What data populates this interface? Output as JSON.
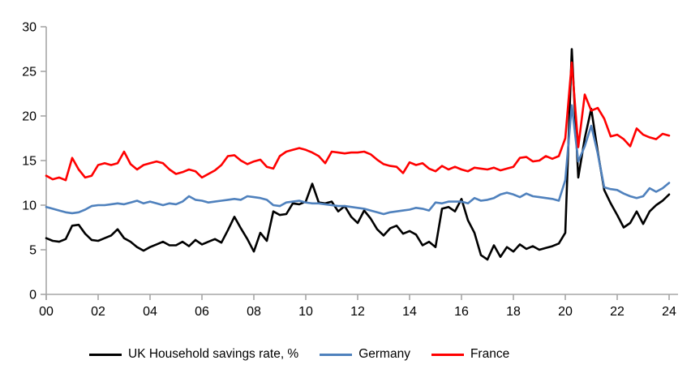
{
  "page": {
    "background": "#FFFFFF"
  },
  "chart_data": {
    "type": "line",
    "title": "",
    "frequency": "quarterly",
    "grid": false,
    "legend_position": "bottom",
    "axis_color": "#A6A6A6",
    "label_color": "#000000",
    "x_axis": {
      "start_year": 2000,
      "end_year": 2024,
      "tick_interval_years": 2,
      "tick_labels": [
        "00",
        "02",
        "04",
        "06",
        "08",
        "10",
        "12",
        "14",
        "16",
        "18",
        "20",
        "22",
        "24"
      ]
    },
    "y_axis": {
      "min": 0,
      "max": 30,
      "tick_step": 5,
      "tick_labels": [
        "0",
        "5",
        "10",
        "15",
        "20",
        "25",
        "30"
      ]
    },
    "series": [
      {
        "name": "UK Household savings rate, %",
        "color": "#000000",
        "values": [
          6.3,
          6.0,
          5.9,
          6.2,
          7.7,
          7.8,
          6.8,
          6.1,
          6.0,
          6.3,
          6.6,
          7.3,
          6.3,
          5.9,
          5.3,
          4.9,
          5.3,
          5.6,
          5.9,
          5.5,
          5.5,
          5.9,
          5.4,
          6.1,
          5.6,
          5.9,
          6.2,
          5.8,
          7.2,
          8.7,
          7.4,
          6.2,
          4.8,
          6.9,
          6.0,
          9.3,
          8.9,
          9.0,
          10.2,
          10.1,
          10.4,
          12.4,
          10.3,
          10.2,
          10.4,
          9.3,
          9.9,
          8.7,
          8.0,
          9.4,
          8.5,
          7.3,
          6.6,
          7.4,
          7.7,
          6.8,
          7.1,
          6.7,
          5.5,
          5.9,
          5.3,
          9.6,
          9.8,
          9.3,
          10.7,
          8.3,
          6.9,
          4.4,
          3.9,
          5.5,
          4.2,
          5.3,
          4.8,
          5.6,
          5.1,
          5.4,
          5.0,
          5.2,
          5.4,
          5.7,
          6.9,
          27.5,
          13.1,
          17.5,
          20.8,
          16.0,
          11.7,
          10.2,
          8.9,
          7.5,
          8.0,
          9.3,
          7.9,
          9.3,
          10.0,
          10.5,
          11.2
        ]
      },
      {
        "name": "Germany",
        "color": "#4F81BD",
        "values": [
          9.8,
          9.6,
          9.4,
          9.2,
          9.1,
          9.2,
          9.5,
          9.9,
          10.0,
          10.0,
          10.1,
          10.2,
          10.1,
          10.3,
          10.5,
          10.2,
          10.4,
          10.2,
          10.0,
          10.2,
          10.1,
          10.4,
          11.0,
          10.6,
          10.5,
          10.3,
          10.4,
          10.5,
          10.6,
          10.7,
          10.6,
          11.0,
          10.9,
          10.8,
          10.6,
          10.0,
          9.9,
          10.3,
          10.4,
          10.5,
          10.3,
          10.2,
          10.2,
          10.1,
          10.0,
          9.9,
          9.9,
          9.8,
          9.7,
          9.6,
          9.4,
          9.2,
          9.0,
          9.2,
          9.3,
          9.4,
          9.5,
          9.7,
          9.6,
          9.4,
          10.3,
          10.2,
          10.4,
          10.4,
          10.4,
          10.2,
          10.8,
          10.5,
          10.6,
          10.8,
          11.2,
          11.4,
          11.2,
          10.9,
          11.3,
          11.0,
          10.9,
          10.8,
          10.7,
          10.5,
          12.8,
          21.2,
          14.9,
          16.6,
          18.9,
          15.8,
          12.0,
          11.8,
          11.7,
          11.3,
          11.0,
          10.8,
          11.0,
          11.9,
          11.5,
          11.9,
          12.5
        ]
      },
      {
        "name": "France",
        "color": "#FF0000",
        "values": [
          13.3,
          12.9,
          13.1,
          12.8,
          15.3,
          14.0,
          13.1,
          13.3,
          14.5,
          14.7,
          14.5,
          14.7,
          16.0,
          14.6,
          14.0,
          14.5,
          14.7,
          14.9,
          14.7,
          14.0,
          13.5,
          13.7,
          14.0,
          13.8,
          13.1,
          13.5,
          13.9,
          14.5,
          15.5,
          15.6,
          15.0,
          14.6,
          14.9,
          15.1,
          14.3,
          14.1,
          15.5,
          16.0,
          16.2,
          16.4,
          16.2,
          15.9,
          15.5,
          14.7,
          16.0,
          15.9,
          15.8,
          15.9,
          15.9,
          16.0,
          15.7,
          15.1,
          14.6,
          14.4,
          14.3,
          13.6,
          14.8,
          14.5,
          14.7,
          14.1,
          13.8,
          14.4,
          14.0,
          14.3,
          14.0,
          13.8,
          14.2,
          14.1,
          14.0,
          14.2,
          13.9,
          14.1,
          14.3,
          15.3,
          15.4,
          14.9,
          15.0,
          15.5,
          15.2,
          15.5,
          17.5,
          26.0,
          16.5,
          22.4,
          20.6,
          20.9,
          19.7,
          17.7,
          17.9,
          17.4,
          16.6,
          18.6,
          17.9,
          17.6,
          17.4,
          18.0,
          17.8
        ]
      }
    ]
  }
}
